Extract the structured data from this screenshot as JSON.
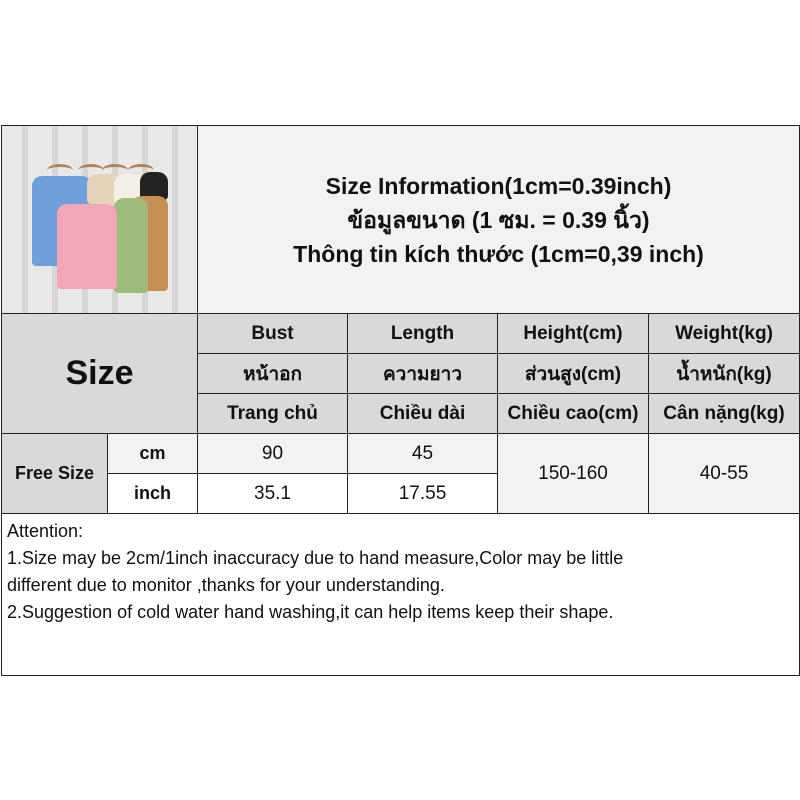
{
  "title_lines": [
    "Size Information(1cm=0.39inch)",
    "ข้อมูลขนาด (1 ซม. = 0.39 นิ้ว)",
    "Thông tin kích thước (1cm=0,39 inch)"
  ],
  "size_label": "Size",
  "columns": [
    {
      "en": "Bust",
      "th": "หน้าอก",
      "vi": "Trang chủ"
    },
    {
      "en": "Length",
      "th": "ความยาว",
      "vi": "Chiều dài"
    },
    {
      "en": "Height(cm)",
      "th": "ส่วนสูง(cm)",
      "vi": "Chiều cao(cm)"
    },
    {
      "en": "Weight(kg)",
      "th": "น้ำหนัก(kg)",
      "vi": "Cân nặng(kg)"
    }
  ],
  "row": {
    "size": "Free Size",
    "units": [
      "cm",
      "inch"
    ],
    "bust": [
      "90",
      "35.1"
    ],
    "length": [
      "45",
      "17.55"
    ],
    "height": "150-160",
    "weight": "40-55"
  },
  "attention": {
    "heading": "Attention:",
    "lines": [
      "1.Size may be 2cm/1inch inaccuracy due to hand measure,Color may be little",
      "different due to monitor ,thanks for your understanding.",
      "2.Suggestion of cold water hand washing,it can help items keep their shape."
    ]
  },
  "colors": {
    "header_bg": "#d9d9d9",
    "light_bg": "#f2f2f2",
    "vest_colors": [
      "#6fa0dc",
      "#f2a6b8",
      "#9dbb7c",
      "#c68f55",
      "#f3efe6",
      "#222222",
      "#e4d3b8"
    ]
  }
}
